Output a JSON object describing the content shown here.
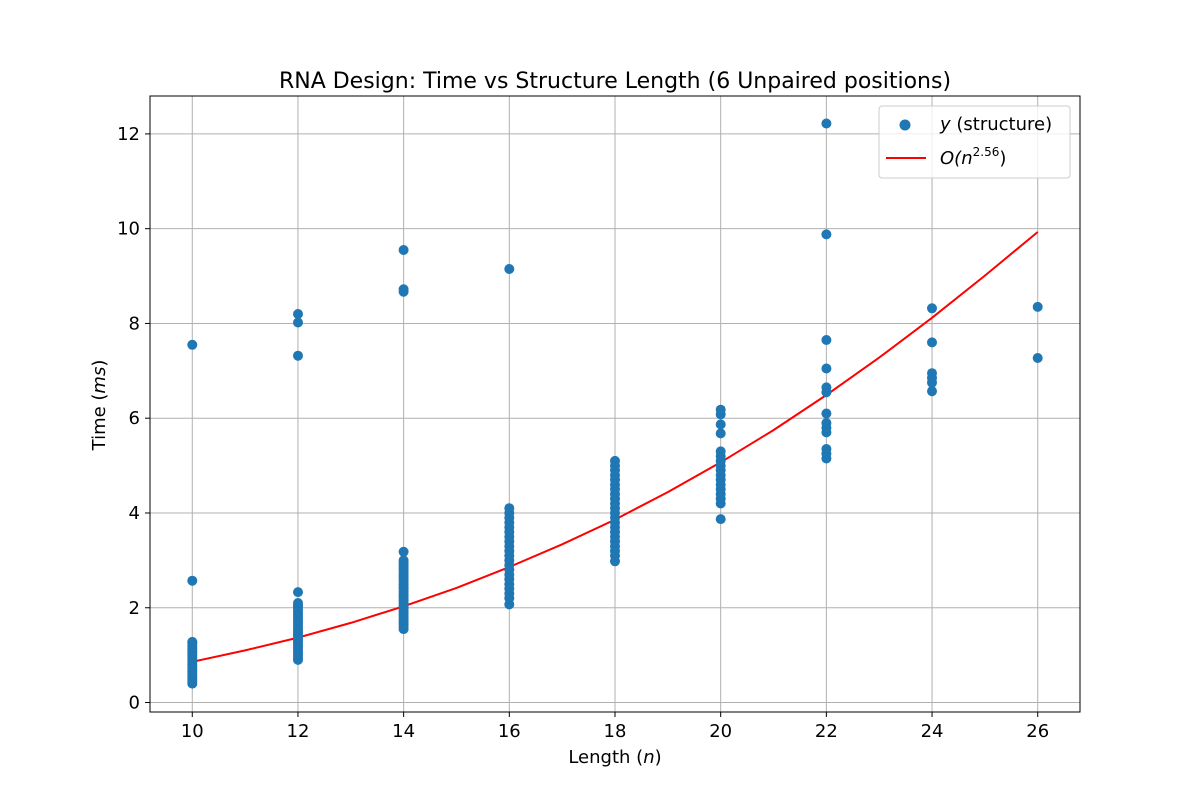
{
  "chart_data": {
    "type": "scatter",
    "title": "RNA Design: Time vs Structure Length (6 Unpaired positions)",
    "xlabel": {
      "prefix": "Length (",
      "var": "n",
      "suffix": ")"
    },
    "ylabel": {
      "prefix": "Time (",
      "var": "ms",
      "suffix": ")"
    },
    "xlim": [
      9.2,
      26.8
    ],
    "ylim": [
      -0.2,
      12.8
    ],
    "xticks": [
      10,
      12,
      14,
      16,
      18,
      20,
      22,
      24,
      26
    ],
    "yticks": [
      0,
      2,
      4,
      6,
      8,
      10,
      12
    ],
    "grid": true,
    "legend_position": "top-right",
    "colors": {
      "scatter": "#1f77b4",
      "fit": "#ff0000",
      "grid": "#b0b0b0"
    },
    "series": [
      {
        "kind": "scatter",
        "legend": {
          "var": "y",
          "text": " (structure)"
        },
        "points": [
          {
            "x": 10,
            "values": [
              0.4,
              0.45,
              0.5,
              0.55,
              0.6,
              0.65,
              0.7,
              0.75,
              0.8,
              0.85,
              0.9,
              0.95,
              1.0,
              1.05,
              1.1,
              1.15,
              1.2,
              1.25,
              1.28,
              2.57,
              7.55
            ]
          },
          {
            "x": 12,
            "values": [
              0.9,
              0.95,
              1.0,
              1.05,
              1.1,
              1.15,
              1.2,
              1.25,
              1.3,
              1.35,
              1.4,
              1.45,
              1.5,
              1.55,
              1.6,
              1.65,
              1.7,
              1.75,
              1.8,
              1.85,
              1.9,
              1.95,
              2.0,
              2.05,
              2.1,
              2.33,
              7.32,
              8.02,
              8.2
            ]
          },
          {
            "x": 14,
            "values": [
              1.55,
              1.6,
              1.65,
              1.7,
              1.75,
              1.8,
              1.85,
              1.9,
              1.95,
              2.0,
              2.05,
              2.1,
              2.15,
              2.2,
              2.25,
              2.3,
              2.35,
              2.4,
              2.45,
              2.5,
              2.55,
              2.6,
              2.65,
              2.7,
              2.75,
              2.8,
              2.85,
              2.9,
              2.95,
              3.0,
              3.18,
              8.67,
              8.72,
              9.55
            ]
          },
          {
            "x": 16,
            "values": [
              2.07,
              2.2,
              2.3,
              2.4,
              2.5,
              2.6,
              2.7,
              2.8,
              2.9,
              3.0,
              3.1,
              3.2,
              3.3,
              3.4,
              3.5,
              3.6,
              3.7,
              3.8,
              3.9,
              4.0,
              4.1,
              9.15
            ]
          },
          {
            "x": 18,
            "values": [
              2.98,
              3.1,
              3.2,
              3.3,
              3.4,
              3.5,
              3.6,
              3.7,
              3.8,
              3.9,
              4.0,
              4.1,
              4.2,
              4.3,
              4.4,
              4.5,
              4.6,
              4.7,
              4.8,
              4.9,
              5.0,
              5.1
            ]
          },
          {
            "x": 20,
            "values": [
              3.87,
              4.2,
              4.3,
              4.4,
              4.5,
              4.6,
              4.7,
              4.8,
              4.9,
              5.0,
              5.1,
              5.2,
              5.3,
              5.68,
              5.87,
              6.08,
              6.18
            ]
          },
          {
            "x": 22,
            "values": [
              5.15,
              5.25,
              5.35,
              5.7,
              5.8,
              5.9,
              6.1,
              6.55,
              6.65,
              7.05,
              7.65,
              9.88,
              12.22
            ]
          },
          {
            "x": 24,
            "values": [
              6.57,
              6.75,
              6.85,
              6.95,
              7.6,
              8.32
            ]
          },
          {
            "x": 26,
            "values": [
              7.27,
              8.35
            ]
          }
        ]
      },
      {
        "kind": "line",
        "legend": {
          "prefix": "O(",
          "var": "n",
          "exp": "2.56",
          "suffix": ")"
        },
        "exponent": 2.56,
        "x": [
          10,
          11,
          12,
          13,
          14,
          15,
          16,
          17,
          18,
          19,
          20,
          21,
          22,
          23,
          24,
          25,
          26
        ],
        "y": [
          0.86,
          1.1,
          1.37,
          1.68,
          2.03,
          2.42,
          2.86,
          3.34,
          3.86,
          4.44,
          5.07,
          5.75,
          6.49,
          7.28,
          8.12,
          9.01,
          9.93
        ]
      }
    ]
  }
}
